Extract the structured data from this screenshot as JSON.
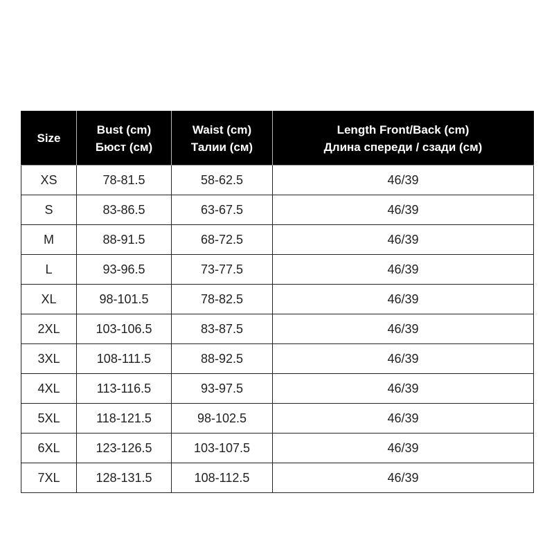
{
  "headers": [
    {
      "line1": "Size",
      "line2": ""
    },
    {
      "line1": "Bust (cm)",
      "line2": "Бюст (см)"
    },
    {
      "line1": "Waist (cm)",
      "line2": "Талии (см)"
    },
    {
      "line1": "Length Front/Back (cm)",
      "line2": "Длина спереди / сзади (см)"
    }
  ],
  "rows": [
    [
      "XS",
      "78-81.5",
      "58-62.5",
      "46/39"
    ],
    [
      "S",
      "83-86.5",
      "63-67.5",
      "46/39"
    ],
    [
      "M",
      "88-91.5",
      "68-72.5",
      "46/39"
    ],
    [
      "L",
      "93-96.5",
      "73-77.5",
      "46/39"
    ],
    [
      "XL",
      "98-101.5",
      "78-82.5",
      "46/39"
    ],
    [
      "2XL",
      "103-106.5",
      "83-87.5",
      "46/39"
    ],
    [
      "3XL",
      "108-111.5",
      "88-92.5",
      "46/39"
    ],
    [
      "4XL",
      "113-116.5",
      "93-97.5",
      "46/39"
    ],
    [
      "5XL",
      "118-121.5",
      "98-102.5",
      "46/39"
    ],
    [
      "6XL",
      "123-126.5",
      "103-107.5",
      "46/39"
    ],
    [
      "7XL",
      "128-131.5",
      "108-112.5",
      "46/39"
    ]
  ]
}
